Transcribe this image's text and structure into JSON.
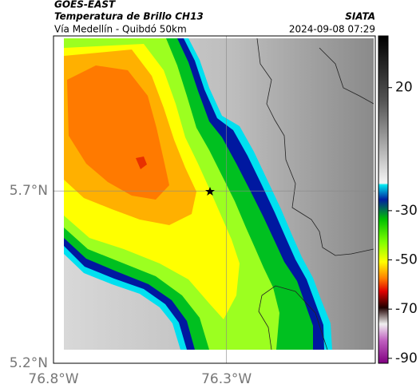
{
  "header": {
    "title": "GOES-EAST",
    "subtitle": "Temperatura de Brillo CH13",
    "route": "Vía Medellín - Quibdó 50km",
    "source": "SIATA",
    "timestamp": "2024-09-08 07:29"
  },
  "map": {
    "latlim": [
      5.2,
      6.15
    ],
    "lonlim": [
      -76.8,
      -75.87
    ],
    "latticks": [
      {
        "value": 5.7,
        "label": "5.7°N"
      },
      {
        "value": 5.2,
        "label": "5.2°N"
      }
    ],
    "lonticks": [
      {
        "value": -76.8,
        "label": "76.8°W"
      },
      {
        "value": -76.3,
        "label": "76.3°W"
      }
    ],
    "grid": true
  },
  "colorbar": {
    "lim": [
      -92,
      41
    ],
    "ticks": [
      20,
      -30,
      -50,
      -70,
      -90
    ]
  }
}
